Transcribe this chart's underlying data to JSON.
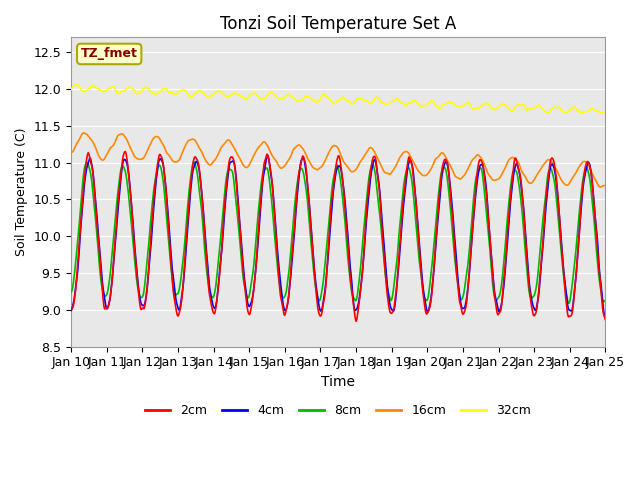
{
  "title": "Tonzi Soil Temperature Set A",
  "xlabel": "Time",
  "ylabel": "Soil Temperature (C)",
  "ylim": [
    8.5,
    12.7
  ],
  "annotation_text": "TZ_fmet",
  "annotation_box_color": "#FFFFCC",
  "annotation_text_color": "#8B0000",
  "annotation_edge_color": "#AAAA00",
  "bg_color": "#E8E8E8",
  "line_colors": {
    "2cm": "#FF0000",
    "4cm": "#0000FF",
    "8cm": "#00BB00",
    "16cm": "#FF8800",
    "32cm": "#FFFF00"
  },
  "x_tick_labels": [
    "Jan 10",
    "Jan 11",
    "Jan 12",
    "Jan 13",
    "Jan 14",
    "Jan 15",
    "Jan 16",
    "Jan 17",
    "Jan 18",
    "Jan 19",
    "Jan 20",
    "Jan 21",
    "Jan 22",
    "Jan 23",
    "Jan 24",
    "Jan 25"
  ],
  "yticks": [
    8.5,
    9.0,
    9.5,
    10.0,
    10.5,
    11.0,
    11.5,
    12.0,
    12.5
  ]
}
